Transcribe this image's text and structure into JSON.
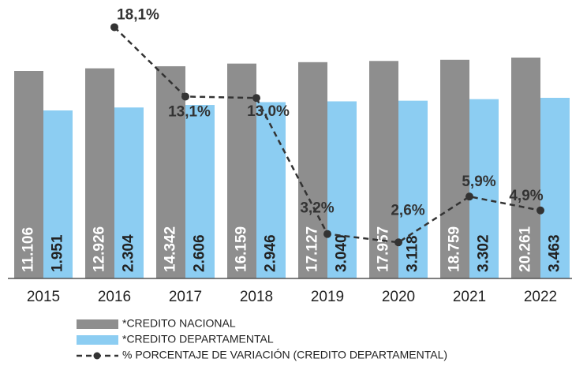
{
  "chart_data": {
    "type": "bar",
    "categories": [
      "2015",
      "2016",
      "2017",
      "2018",
      "2019",
      "2020",
      "2021",
      "2022"
    ],
    "series": [
      {
        "name": "*CREDITO NACIONAL",
        "color": "#8e8e8e",
        "values": [
          11106,
          12926,
          14342,
          16159,
          17127,
          17957,
          18759,
          20261
        ],
        "value_labels": [
          "11.106",
          "12.926",
          "14.342",
          "16.159",
          "17.127",
          "17.957",
          "18.759",
          "20.261"
        ]
      },
      {
        "name": "*CREDITO DEPARTAMENTAL",
        "color": "#8ccdf2",
        "values": [
          1951,
          2304,
          2606,
          2946,
          3040,
          3118,
          3302,
          3463
        ],
        "value_labels": [
          "1.951",
          "2.304",
          "2.606",
          "2.946",
          "3.040",
          "3.118",
          "3.302",
          "3.463"
        ]
      },
      {
        "name": "% PORCENTAJE DE VARIACIÓN (CREDITO DEPARTAMENTAL)",
        "type": "line",
        "color": "#333333",
        "values": [
          null,
          18.1,
          13.1,
          13.0,
          3.2,
          2.6,
          5.9,
          4.9
        ],
        "value_labels": [
          null,
          "18,1%",
          "13,1%",
          "13,0%",
          "3,2%",
          "2,6%",
          "5,9%",
          "4,9%"
        ]
      }
    ]
  }
}
